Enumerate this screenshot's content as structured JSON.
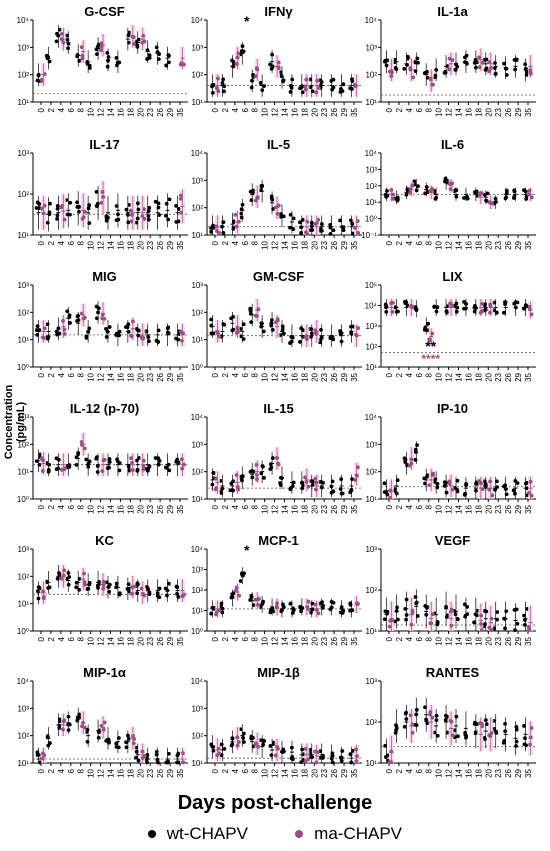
{
  "figure": {
    "y_axis_label": "Concentration (pg/mL)",
    "x_axis_label": "Days post-challenge",
    "legend": [
      {
        "name": "wt-CHAPV",
        "color": "#000000"
      },
      {
        "name": "ma-CHAPV",
        "color": "#9b4f86"
      }
    ],
    "highlight_color": "#f7d4ea",
    "colors": {
      "wt": "#000000",
      "ma": "#9b4f86"
    }
  },
  "chart_data": [
    {
      "type": "scatter",
      "title": "G-CSF",
      "y_scale": "log",
      "y_ticks": [
        "10¹",
        "10²",
        "10³",
        "10⁴"
      ],
      "x_ticks": [
        "0",
        "2",
        "4",
        "6",
        "8",
        "10",
        "12",
        "14",
        "16",
        "18",
        "20",
        "23",
        "26",
        "29",
        "35"
      ],
      "lod": 20,
      "annotations": [],
      "wt_means": [
        100,
        400,
        2500,
        1500,
        500,
        300,
        900,
        350,
        300,
        2000,
        1500,
        700,
        600,
        400,
        null
      ],
      "ma_means": [
        100,
        null,
        2000,
        null,
        700,
        null,
        1200,
        null,
        null,
        2500,
        2000,
        null,
        null,
        null,
        400
      ]
    },
    {
      "type": "scatter",
      "title": "IFNγ",
      "y_scale": "log",
      "y_ticks": [
        "10¹",
        "10²",
        "10³",
        "10⁴"
      ],
      "x_ticks": [
        "0",
        "2",
        "4",
        "6",
        "8",
        "10",
        "12",
        "14",
        "16",
        "18",
        "20",
        "23",
        "26",
        "29",
        "35"
      ],
      "lod": 40,
      "annotations": [
        {
          "day_index": 3,
          "text": "*",
          "color": "#000000"
        }
      ],
      "wt_means": [
        40,
        40,
        200,
        600,
        60,
        40,
        300,
        80,
        40,
        40,
        40,
        40,
        40,
        40,
        40
      ],
      "ma_means": [
        40,
        null,
        400,
        null,
        150,
        null,
        200,
        null,
        null,
        40,
        40,
        null,
        null,
        null,
        40
      ]
    },
    {
      "type": "scatter",
      "title": "IL-1a",
      "y_scale": "log",
      "y_ticks": [
        "10¹",
        "10²",
        "10³",
        "10⁴"
      ],
      "x_ticks": [
        "0",
        "2",
        "4",
        "6",
        "8",
        "10",
        "12",
        "14",
        "16",
        "18",
        "20",
        "23",
        "26",
        "29",
        "35"
      ],
      "lod": 18,
      "annotations": [],
      "wt_means": [
        300,
        300,
        250,
        250,
        100,
        150,
        200,
        250,
        300,
        300,
        250,
        200,
        180,
        200,
        150
      ],
      "ma_means": [
        150,
        null,
        150,
        null,
        60,
        null,
        250,
        null,
        null,
        350,
        250,
        null,
        null,
        null,
        200
      ]
    },
    {
      "type": "scatter",
      "title": "IL-17",
      "y_scale": "log",
      "y_ticks": [
        "10¹",
        "10²",
        "10³"
      ],
      "x_ticks": [
        "0",
        "2",
        "4",
        "6",
        "8",
        "10",
        "12",
        "14",
        "16",
        "18",
        "20",
        "23",
        "26",
        "29",
        "35"
      ],
      "lod": 32,
      "annotations": [],
      "wt_means": [
        35,
        32,
        35,
        40,
        45,
        35,
        60,
        35,
        40,
        35,
        35,
        35,
        35,
        40,
        35
      ],
      "ma_means": [
        35,
        null,
        38,
        null,
        40,
        null,
        80,
        null,
        null,
        35,
        35,
        null,
        null,
        null,
        50
      ]
    },
    {
      "type": "scatter",
      "title": "IL-5",
      "y_scale": "log",
      "y_ticks": [
        "10¹",
        "10²",
        "10³",
        "10⁴"
      ],
      "x_ticks": [
        "0",
        "2",
        "4",
        "6",
        "8",
        "10",
        "12",
        "14",
        "16",
        "18",
        "20",
        "23",
        "26",
        "29",
        "35"
      ],
      "lod": 20,
      "annotations": [],
      "wt_means": [
        20,
        20,
        25,
        80,
        300,
        400,
        150,
        50,
        30,
        20,
        20,
        20,
        20,
        20,
        20
      ],
      "ma_means": [
        20,
        null,
        30,
        null,
        250,
        null,
        100,
        null,
        null,
        20,
        20,
        null,
        null,
        null,
        20
      ]
    },
    {
      "type": "scatter",
      "title": "IL-6",
      "y_scale": "log",
      "y_ticks": [
        "10⁻¹",
        "10⁰",
        "10¹",
        "10²",
        "10³",
        "10⁴"
      ],
      "x_ticks": [
        "0",
        "2",
        "4",
        "6",
        "8",
        "10",
        "12",
        "14",
        "16",
        "18",
        "20",
        "23",
        "26",
        "29",
        "35"
      ],
      "lod": 30,
      "annotations": [],
      "wt_means": [
        30,
        20,
        40,
        100,
        60,
        30,
        150,
        30,
        30,
        30,
        20,
        10,
        30,
        30,
        30
      ],
      "ma_means": [
        30,
        null,
        60,
        null,
        40,
        null,
        100,
        null,
        null,
        20,
        10,
        null,
        null,
        null,
        30
      ]
    },
    {
      "type": "scatter",
      "title": "MIG",
      "y_scale": "log",
      "y_ticks": [
        "10⁰",
        "10¹",
        "10²",
        "10³"
      ],
      "x_ticks": [
        "0",
        "2",
        "4",
        "6",
        "8",
        "10",
        "12",
        "14",
        "16",
        "18",
        "20",
        "23",
        "26",
        "29",
        "35"
      ],
      "lod": 15,
      "annotations": [],
      "wt_means": [
        20,
        20,
        25,
        60,
        40,
        20,
        100,
        20,
        15,
        20,
        15,
        15,
        15,
        15,
        15
      ],
      "ma_means": [
        20,
        null,
        30,
        null,
        80,
        null,
        90,
        null,
        null,
        25,
        15,
        null,
        null,
        null,
        15
      ]
    },
    {
      "type": "scatter",
      "title": "GM-CSF",
      "y_scale": "log",
      "y_ticks": [
        "10⁰",
        "10¹",
        "10²",
        "10³"
      ],
      "x_ticks": [
        "0",
        "2",
        "4",
        "6",
        "8",
        "10",
        "12",
        "14",
        "16",
        "18",
        "20",
        "23",
        "26",
        "29",
        "35"
      ],
      "lod": 14,
      "annotations": [],
      "wt_means": [
        30,
        20,
        40,
        20,
        80,
        30,
        40,
        20,
        14,
        14,
        14,
        14,
        14,
        14,
        20
      ],
      "ma_means": [
        20,
        null,
        30,
        null,
        120,
        null,
        30,
        null,
        null,
        14,
        20,
        null,
        null,
        null,
        14
      ]
    },
    {
      "type": "scatter",
      "title": "LIX",
      "y_scale": "log",
      "y_ticks": [
        "10¹",
        "10²",
        "10³",
        "10⁴",
        "10⁵"
      ],
      "x_ticks": [
        "0",
        "2",
        "4",
        "6",
        "8",
        "10",
        "12",
        "14",
        "16",
        "18",
        "20",
        "23",
        "26",
        "29",
        "35"
      ],
      "lod": 50,
      "annotations": [
        {
          "day_index": 4,
          "text": "**",
          "color": "#000000"
        },
        {
          "day_index": 4,
          "text": "****",
          "color": "#9b4f86"
        }
      ],
      "wt_means": [
        8000,
        8000,
        8000,
        7000,
        1000,
        8000,
        8000,
        8000,
        8000,
        8000,
        8000,
        8000,
        8000,
        8000,
        8000
      ],
      "ma_means": [
        8000,
        null,
        8000,
        null,
        300,
        null,
        8000,
        null,
        null,
        8000,
        8000,
        null,
        null,
        null,
        6000
      ]
    },
    {
      "type": "scatter",
      "title": "IL-12 (p-70)",
      "y_scale": "log",
      "y_ticks": [
        "10⁰",
        "10¹",
        "10²",
        "10³"
      ],
      "x_ticks": [
        "0",
        "2",
        "4",
        "6",
        "8",
        "10",
        "12",
        "14",
        "16",
        "18",
        "20",
        "23",
        "26",
        "29",
        "35"
      ],
      "lod": 18,
      "annotations": [],
      "wt_means": [
        25,
        18,
        18,
        18,
        30,
        18,
        18,
        18,
        18,
        18,
        18,
        18,
        18,
        18,
        18
      ],
      "ma_means": [
        20,
        null,
        18,
        null,
        100,
        null,
        18,
        null,
        null,
        18,
        18,
        null,
        null,
        null,
        18
      ]
    },
    {
      "type": "scatter",
      "title": "IL-15",
      "y_scale": "log",
      "y_ticks": [
        "10¹",
        "10²",
        "10³",
        "10⁴"
      ],
      "x_ticks": [
        "0",
        "2",
        "4",
        "6",
        "8",
        "10",
        "12",
        "14",
        "16",
        "18",
        "20",
        "23",
        "26",
        "29",
        "35"
      ],
      "lod": 25,
      "annotations": [],
      "wt_means": [
        50,
        30,
        30,
        60,
        80,
        100,
        200,
        60,
        40,
        40,
        30,
        30,
        30,
        30,
        30
      ],
      "ma_means": [
        40,
        null,
        40,
        null,
        100,
        null,
        300,
        null,
        null,
        50,
        30,
        null,
        null,
        null,
        80
      ]
    },
    {
      "type": "scatter",
      "title": "IP-10",
      "y_scale": "log",
      "y_ticks": [
        "10¹",
        "10²",
        "10³",
        "10⁴"
      ],
      "x_ticks": [
        "0",
        "2",
        "4",
        "6",
        "8",
        "10",
        "12",
        "14",
        "16",
        "18",
        "20",
        "23",
        "26",
        "29",
        "35"
      ],
      "lod": 28,
      "annotations": [],
      "wt_means": [
        20,
        30,
        200,
        500,
        50,
        40,
        30,
        25,
        25,
        25,
        25,
        25,
        25,
        25,
        25
      ],
      "ma_means": [
        20,
        null,
        300,
        null,
        50,
        null,
        30,
        null,
        null,
        25,
        25,
        null,
        null,
        null,
        25
      ]
    },
    {
      "type": "scatter",
      "title": "KC",
      "y_scale": "log",
      "y_ticks": [
        "10⁰",
        "10¹",
        "10²",
        "10³"
      ],
      "x_ticks": [
        "0",
        "2",
        "4",
        "6",
        "8",
        "10",
        "12",
        "14",
        "16",
        "18",
        "20",
        "23",
        "26",
        "29",
        "35"
      ],
      "lod": 22,
      "annotations": [],
      "wt_means": [
        25,
        60,
        100,
        70,
        60,
        50,
        60,
        40,
        40,
        35,
        30,
        30,
        30,
        30,
        30
      ],
      "ma_means": [
        25,
        null,
        100,
        null,
        80,
        null,
        50,
        null,
        null,
        40,
        25,
        null,
        null,
        null,
        30
      ]
    },
    {
      "type": "scatter",
      "title": "MCP-1",
      "y_scale": "log",
      "y_ticks": [
        "10⁰",
        "10¹",
        "10²",
        "10³",
        "10⁴"
      ],
      "x_ticks": [
        "0",
        "2",
        "4",
        "6",
        "8",
        "10",
        "12",
        "14",
        "16",
        "18",
        "20",
        "23",
        "26",
        "29",
        "35"
      ],
      "lod": 12,
      "annotations": [
        {
          "day_index": 3,
          "text": "*",
          "color": "#000000"
        }
      ],
      "wt_means": [
        12,
        12,
        40,
        500,
        30,
        20,
        15,
        12,
        12,
        15,
        12,
        15,
        15,
        12,
        12
      ],
      "ma_means": [
        12,
        null,
        80,
        null,
        30,
        null,
        15,
        null,
        null,
        15,
        12,
        null,
        null,
        null,
        20
      ]
    },
    {
      "type": "scatter",
      "title": "VEGF",
      "y_scale": "log",
      "y_ticks": [
        "10¹",
        "10²",
        "10³"
      ],
      "x_ticks": [
        "0",
        "2",
        "4",
        "6",
        "8",
        "10",
        "12",
        "14",
        "16",
        "18",
        "20",
        "23",
        "26",
        "29",
        "35"
      ],
      "lod": 14,
      "annotations": [],
      "wt_means": [
        25,
        30,
        35,
        40,
        30,
        25,
        35,
        30,
        25,
        25,
        20,
        20,
        20,
        18,
        20
      ],
      "ma_means": [
        20,
        null,
        25,
        null,
        20,
        null,
        20,
        null,
        null,
        18,
        16,
        null,
        null,
        null,
        16
      ]
    },
    {
      "type": "scatter",
      "title": "MIP-1α",
      "y_scale": "log",
      "y_ticks": [
        "10¹",
        "10²",
        "10³",
        "10⁴"
      ],
      "x_ticks": [
        "0",
        "2",
        "4",
        "6",
        "8",
        "10",
        "12",
        "14",
        "16",
        "18",
        "20",
        "23",
        "26",
        "29",
        "35"
      ],
      "lod": 14,
      "annotations": [],
      "wt_means": [
        14,
        80,
        250,
        300,
        400,
        100,
        150,
        80,
        60,
        60,
        20,
        14,
        14,
        14,
        14
      ],
      "ma_means": [
        14,
        null,
        250,
        null,
        300,
        null,
        200,
        null,
        null,
        80,
        20,
        null,
        null,
        null,
        14
      ]
    },
    {
      "type": "scatter",
      "title": "MIP-1β",
      "y_scale": "log",
      "y_ticks": [
        "10¹",
        "10²",
        "10³",
        "10⁴"
      ],
      "x_ticks": [
        "0",
        "2",
        "4",
        "6",
        "8",
        "10",
        "12",
        "14",
        "16",
        "18",
        "20",
        "23",
        "26",
        "29",
        "35"
      ],
      "lod": 15,
      "annotations": [],
      "wt_means": [
        40,
        30,
        60,
        100,
        60,
        40,
        30,
        25,
        25,
        20,
        20,
        20,
        18,
        15,
        15
      ],
      "ma_means": [
        30,
        null,
        80,
        null,
        50,
        null,
        30,
        null,
        null,
        20,
        18,
        null,
        null,
        null,
        18
      ]
    },
    {
      "type": "scatter",
      "title": "RANTES",
      "y_scale": "log",
      "y_ticks": [
        "10¹",
        "10²",
        "10³"
      ],
      "x_ticks": [
        "0",
        "2",
        "4",
        "6",
        "8",
        "10",
        "12",
        "14",
        "16",
        "18",
        "20",
        "23",
        "26",
        "29",
        "35"
      ],
      "lod": 25,
      "annotations": [],
      "wt_means": [
        15,
        80,
        100,
        150,
        150,
        80,
        100,
        80,
        70,
        60,
        60,
        60,
        50,
        40,
        50
      ],
      "ma_means": [
        18,
        null,
        80,
        null,
        100,
        null,
        70,
        null,
        null,
        50,
        50,
        null,
        null,
        null,
        40
      ]
    }
  ]
}
